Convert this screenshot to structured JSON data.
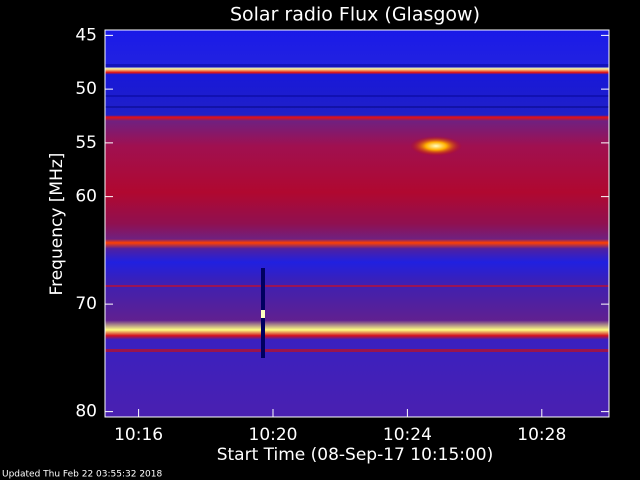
{
  "chart_data": {
    "type": "spectrogram",
    "title": "Solar radio Flux (Glasgow)",
    "x_label": "Start Time (08-Sep-17 10:15:00)",
    "y_label": "Frequency [MHz]",
    "footer": "Updated Thu Feb 22 03:55:32 2018",
    "xlim": [
      0,
      15
    ],
    "xticks": [
      {
        "value": 1,
        "label": "10:16"
      },
      {
        "value": 5,
        "label": "10:20"
      },
      {
        "value": 9,
        "label": "10:24"
      },
      {
        "value": 13,
        "label": "10:28"
      }
    ],
    "ylim": [
      80.5,
      44.5
    ],
    "yticks": [
      45,
      50,
      55,
      60,
      70,
      80
    ]
  }
}
